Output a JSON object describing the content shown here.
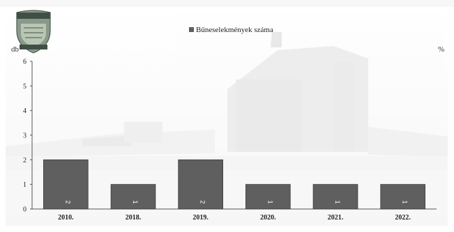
{
  "colors": {
    "bar_fill": "#5f5f5f",
    "bar_edge": "#3a3a3a",
    "axis": "#555555",
    "background_photo": "#e6e6e6"
  },
  "icons": {
    "logo": "police-shield-logo-icon",
    "background": "building-photo-watermark"
  },
  "chart_data": {
    "type": "bar",
    "categories": [
      "2010.",
      "2018.",
      "2019.",
      "2020.",
      "2021.",
      "2022."
    ],
    "series": [
      {
        "name": "Bűneselekmények száma",
        "values": [
          2,
          1,
          2,
          1,
          1,
          1
        ]
      }
    ],
    "data_labels": [
      "2",
      "1",
      "2",
      "1",
      "1",
      "1"
    ],
    "yticks": [
      "0",
      "1",
      "2",
      "3",
      "4",
      "5",
      "6"
    ],
    "ylim": [
      0,
      6
    ],
    "y_unit_left": "db",
    "y_unit_right": "%",
    "legend_position": "top-center",
    "grid": false
  }
}
